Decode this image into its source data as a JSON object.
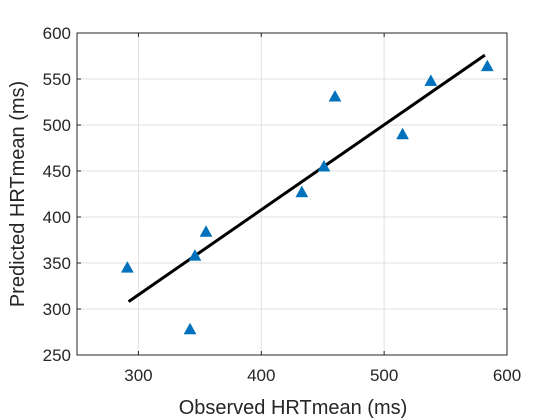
{
  "chart_data": {
    "type": "scatter",
    "title": "",
    "xlabel": "Observed HRTmean (ms)",
    "ylabel": "Predicted HRTmean (ms)",
    "xlim": [
      250,
      600
    ],
    "ylim": [
      250,
      600
    ],
    "xticks": [
      300,
      400,
      500,
      600
    ],
    "yticks": [
      250,
      300,
      350,
      400,
      450,
      500,
      550,
      600
    ],
    "grid": true,
    "marker": "triangle",
    "marker_color": "#0072BD",
    "line_color": "#000000",
    "points": [
      {
        "x": 291,
        "y": 345
      },
      {
        "x": 342,
        "y": 278
      },
      {
        "x": 346,
        "y": 358
      },
      {
        "x": 355,
        "y": 384
      },
      {
        "x": 433,
        "y": 427
      },
      {
        "x": 451,
        "y": 455
      },
      {
        "x": 460,
        "y": 531
      },
      {
        "x": 515,
        "y": 490
      },
      {
        "x": 538,
        "y": 548
      },
      {
        "x": 584,
        "y": 564
      }
    ],
    "fit_line": {
      "x": [
        292,
        582
      ],
      "y": [
        308,
        576
      ]
    }
  }
}
